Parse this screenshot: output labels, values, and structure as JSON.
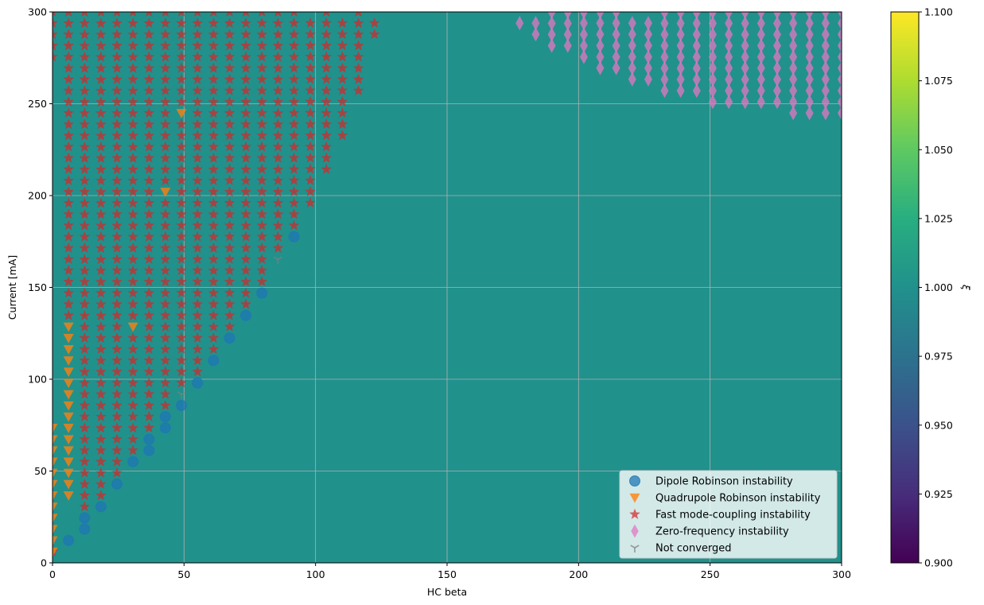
{
  "chart_data": {
    "type": "scatter",
    "title": "",
    "xlabel": "HC beta",
    "ylabel": "Current [mA]",
    "xlim": [
      0,
      300
    ],
    "ylim": [
      0,
      300
    ],
    "x_ticks": [
      0,
      50,
      100,
      150,
      200,
      250,
      300
    ],
    "y_ticks": [
      0,
      50,
      100,
      150,
      200,
      250,
      300
    ],
    "grid": true,
    "legend_position": "lower-right",
    "background_value": 1.0,
    "colorbar": {
      "label": "ξ",
      "min": 0.9,
      "max": 1.1,
      "ticks": [
        "0.900",
        "0.925",
        "0.950",
        "0.975",
        "1.000",
        "1.025",
        "1.050",
        "1.075",
        "1.100"
      ],
      "colormap": "viridis"
    },
    "grid_step_x": 6.12,
    "grid_step_y": 6.12,
    "series": [
      {
        "name": "Dipole Robinson instability",
        "marker": "circle",
        "color": "#1f77b4",
        "points": [
          [
            6.1,
            12.2
          ],
          [
            12.2,
            18.4
          ],
          [
            12.2,
            24.5
          ],
          [
            18.4,
            30.6
          ],
          [
            24.5,
            42.9
          ],
          [
            30.6,
            55.1
          ],
          [
            36.7,
            61.2
          ],
          [
            36.7,
            67.3
          ],
          [
            42.9,
            73.5
          ],
          [
            42.9,
            79.6
          ],
          [
            49,
            85.7
          ],
          [
            55.1,
            98
          ],
          [
            61.2,
            110.2
          ],
          [
            67.3,
            122.4
          ],
          [
            73.5,
            134.7
          ],
          [
            79.6,
            146.9
          ],
          [
            91.8,
            177.6
          ]
        ]
      },
      {
        "name": "Quadrupole Robinson instability",
        "marker": "triangle-down",
        "color": "#ff7f0e",
        "points": [
          [
            0,
            6.1
          ],
          [
            0,
            12.2
          ],
          [
            0,
            18.4
          ],
          [
            0,
            24.5
          ],
          [
            0,
            30.6
          ],
          [
            0,
            36.7
          ],
          [
            0,
            42.9
          ],
          [
            0,
            49
          ],
          [
            0,
            55.1
          ],
          [
            0,
            61.2
          ],
          [
            0,
            67.3
          ],
          [
            0,
            73.5
          ],
          [
            6.1,
            36.7
          ],
          [
            6.1,
            42.9
          ],
          [
            6.1,
            49
          ],
          [
            6.1,
            55.1
          ],
          [
            6.1,
            61.2
          ],
          [
            6.1,
            67.3
          ],
          [
            6.1,
            73.5
          ],
          [
            6.1,
            79.6
          ],
          [
            6.1,
            85.7
          ],
          [
            6.1,
            91.8
          ],
          [
            6.1,
            98
          ],
          [
            6.1,
            104.1
          ],
          [
            6.1,
            110.2
          ],
          [
            6.1,
            116.3
          ],
          [
            6.1,
            122.4
          ],
          [
            6.1,
            128.6
          ],
          [
            30.6,
            128.6
          ],
          [
            42.9,
            202
          ],
          [
            49,
            244.9
          ]
        ]
      },
      {
        "name": "Fast mode-coupling instability",
        "marker": "star",
        "color": "#d62728",
        "columns": [
          {
            "x": 0,
            "y_min": 275.5,
            "y_max": 300,
            "extra": [
              6.1
            ]
          },
          {
            "x": 6.1,
            "y_min": 134.7,
            "y_max": 300
          },
          {
            "x": 12.2,
            "y_min": 30.6,
            "y_max": 300
          },
          {
            "x": 18.4,
            "y_min": 36.7,
            "y_max": 300
          },
          {
            "x": 24.5,
            "y_min": 49,
            "y_max": 300
          },
          {
            "x": 30.6,
            "y_min": 61.2,
            "y_max": 300,
            "skip": [
              128.6
            ]
          },
          {
            "x": 36.7,
            "y_min": 73.5,
            "y_max": 300
          },
          {
            "x": 42.9,
            "y_min": 85.7,
            "y_max": 300,
            "skip": [
              202
            ]
          },
          {
            "x": 49,
            "y_min": 98,
            "y_max": 300,
            "skip": [
              244.9
            ]
          },
          {
            "x": 55.1,
            "y_min": 104.1,
            "y_max": 300
          },
          {
            "x": 61.2,
            "y_min": 116.3,
            "y_max": 300
          },
          {
            "x": 67.3,
            "y_min": 128.6,
            "y_max": 300
          },
          {
            "x": 73.5,
            "y_min": 140.8,
            "y_max": 300
          },
          {
            "x": 79.6,
            "y_min": 153.1,
            "y_max": 300
          },
          {
            "x": 85.7,
            "y_min": 171.4,
            "y_max": 300
          },
          {
            "x": 91.8,
            "y_min": 183.7,
            "y_max": 300
          },
          {
            "x": 98,
            "y_min": 196,
            "y_max": 300
          },
          {
            "x": 104.1,
            "y_min": 214.3,
            "y_max": 300
          },
          {
            "x": 110.2,
            "y_min": 232.7,
            "y_max": 300
          },
          {
            "x": 116.3,
            "y_min": 257.1,
            "y_max": 300
          },
          {
            "x": 122.4,
            "y_min": 287.8,
            "y_max": 300
          }
        ]
      },
      {
        "name": "Zero-frequency instability",
        "marker": "thin-diamond",
        "color": "#e377c2",
        "columns": [
          {
            "x": 177.6,
            "y_min": 293.9,
            "y_max": 300
          },
          {
            "x": 183.7,
            "y_min": 287.8,
            "y_max": 300
          },
          {
            "x": 189.8,
            "y_min": 281.6,
            "y_max": 300
          },
          {
            "x": 195.9,
            "y_min": 281.6,
            "y_max": 300
          },
          {
            "x": 202,
            "y_min": 275.5,
            "y_max": 300
          },
          {
            "x": 208.2,
            "y_min": 269.4,
            "y_max": 300
          },
          {
            "x": 214.3,
            "y_min": 269.4,
            "y_max": 300
          },
          {
            "x": 220.4,
            "y_min": 263.3,
            "y_max": 300
          },
          {
            "x": 226.5,
            "y_min": 263.3,
            "y_max": 300
          },
          {
            "x": 232.7,
            "y_min": 257.1,
            "y_max": 300
          },
          {
            "x": 238.8,
            "y_min": 257.1,
            "y_max": 300
          },
          {
            "x": 244.9,
            "y_min": 257.1,
            "y_max": 300
          },
          {
            "x": 251,
            "y_min": 251,
            "y_max": 300
          },
          {
            "x": 257.1,
            "y_min": 251,
            "y_max": 300
          },
          {
            "x": 263.3,
            "y_min": 251,
            "y_max": 300
          },
          {
            "x": 269.4,
            "y_min": 251,
            "y_max": 300
          },
          {
            "x": 275.5,
            "y_min": 251,
            "y_max": 300
          },
          {
            "x": 281.6,
            "y_min": 244.9,
            "y_max": 300
          },
          {
            "x": 287.8,
            "y_min": 244.9,
            "y_max": 300
          },
          {
            "x": 293.9,
            "y_min": 244.9,
            "y_max": 300
          },
          {
            "x": 300,
            "y_min": 244.9,
            "y_max": 300
          }
        ]
      },
      {
        "name": "Not converged",
        "marker": "tri-down",
        "color": "#7f7f7f",
        "points": [
          [
            85.7,
            165.3
          ],
          [
            49,
            91.8
          ]
        ]
      }
    ]
  }
}
